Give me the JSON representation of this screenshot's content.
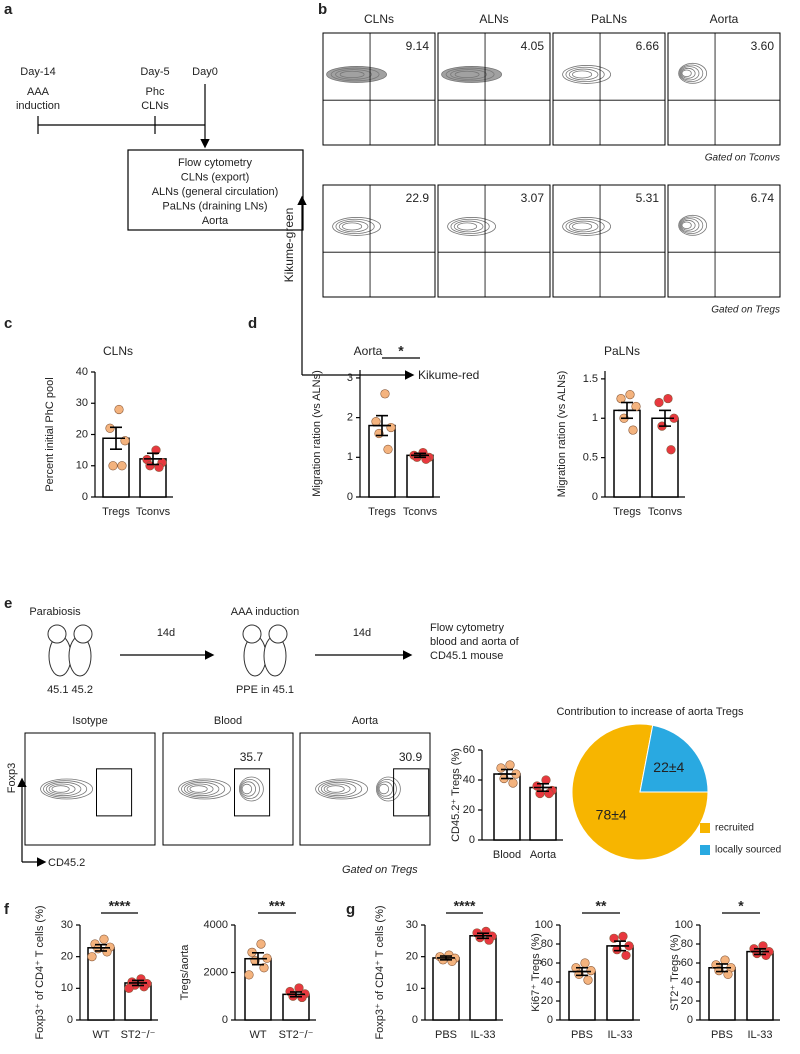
{
  "panel_labels": [
    "a",
    "b",
    "c",
    "d",
    "e",
    "f",
    "g"
  ],
  "panel_a": {
    "timepoints": [
      {
        "day": "Day-14",
        "event": [
          "AAA",
          "induction"
        ]
      },
      {
        "day": "Day-5",
        "event": [
          "Phc",
          "CLNs"
        ]
      },
      {
        "day": "Day0"
      }
    ],
    "readout": [
      "Flow cytometry",
      "CLNs (export)",
      "ALNs (general circulation)",
      "PaLNs (draining LNs)",
      "Aorta"
    ]
  },
  "panel_b": {
    "columns": [
      "CLNs",
      "ALNs",
      "PaLNs",
      "Aorta"
    ],
    "rows": [
      {
        "values": [
          "9.14",
          "4.05",
          "6.66",
          "3.60"
        ],
        "gate_label": "Gated on Tconvs"
      },
      {
        "values": [
          "22.9",
          "3.07",
          "5.31",
          "6.74"
        ],
        "gate_label": "Gated on Tregs"
      }
    ],
    "y_axis": "Kikume-green",
    "x_axis": "Kikume-red"
  },
  "panel_e_scheme": {
    "start": "Parabiosis",
    "mice": "45.1 45.2",
    "interval_1": "14d",
    "step": "AAA induction",
    "step_detail": "PPE in 45.1",
    "interval_2": "14d",
    "readout": [
      "Flow cytometry",
      "blood and aorta of",
      "CD45.1 mouse"
    ]
  },
  "panel_e_flow": {
    "plots": [
      {
        "title": "Isotype"
      },
      {
        "title": "Blood",
        "value": "35.7"
      },
      {
        "title": "Aorta",
        "value": "30.9"
      }
    ],
    "y_axis": "Foxp3",
    "x_axis": "CD45.2",
    "gate_label": "Gated on  Tregs"
  },
  "chart_data": [
    {
      "type": "bar",
      "title": "CLNs",
      "y_label": "Percent initial PhC pool",
      "categories": [
        "Tregs",
        "Tconvs"
      ],
      "values": [
        18.8,
        12.2
      ],
      "errors": [
        3.5,
        1.8
      ],
      "points": [
        [
          28,
          22,
          18,
          10,
          10
        ],
        [
          15,
          12,
          11,
          10,
          9.5
        ]
      ],
      "colors": [
        "#f4b37e",
        "#e8383f"
      ],
      "ylim": [
        0,
        40
      ],
      "yticks": [
        0,
        10,
        20,
        30,
        40
      ]
    },
    {
      "type": "bar",
      "title": "Aorta",
      "y_label": "Migration ration (vs ALNs)",
      "categories": [
        "Tregs",
        "Tconvs"
      ],
      "values": [
        1.8,
        1.05
      ],
      "errors": [
        0.25,
        0.05
      ],
      "points": [
        [
          2.6,
          1.9,
          1.75,
          1.6,
          1.2
        ],
        [
          1.12,
          1.05,
          1.0,
          1.0,
          0.95
        ]
      ],
      "colors": [
        "#f4b37e",
        "#e8383f"
      ],
      "ylim": [
        0,
        3.2
      ],
      "yticks": [
        0,
        1,
        2,
        3
      ],
      "significance": "*"
    },
    {
      "type": "bar",
      "title": "PaLNs",
      "y_label": "Migration ration (vs ALNs)",
      "categories": [
        "Tregs",
        "Tconvs"
      ],
      "values": [
        1.1,
        1.0
      ],
      "errors": [
        0.1,
        0.1
      ],
      "points": [
        [
          1.3,
          1.25,
          1.15,
          1.0,
          0.85
        ],
        [
          1.25,
          1.2,
          1.0,
          0.9,
          0.6
        ]
      ],
      "colors": [
        "#f4b37e",
        "#e8383f"
      ],
      "ylim": [
        0,
        1.6
      ],
      "yticks": [
        0,
        0.5,
        1,
        1.5
      ]
    },
    {
      "type": "bar",
      "y_label": "CD45.2⁺ Tregs (%)",
      "categories": [
        "Blood",
        "Aorta"
      ],
      "values": [
        44,
        35
      ],
      "errors": [
        3,
        2.5
      ],
      "points": [
        [
          50,
          48,
          44,
          41,
          38
        ],
        [
          40,
          36,
          33,
          31,
          31
        ]
      ],
      "colors": [
        "#f4b37e",
        "#e8383f"
      ],
      "ylim": [
        0,
        60
      ],
      "yticks": [
        0,
        20,
        40,
        60
      ]
    },
    {
      "type": "pie",
      "title": "Contribution to increase of aorta Tregs",
      "series": [
        {
          "name": "recruited",
          "color": "#f7b500"
        },
        {
          "name": "locally sourced",
          "color": "#29a9e1"
        }
      ],
      "values": [
        78,
        22
      ],
      "value_labels": [
        "78±4",
        "22±4"
      ]
    },
    {
      "type": "bar",
      "y_label": "Foxp3⁺ of CD4⁺ T cells (%)",
      "categories": [
        "WT",
        "ST2⁻/⁻"
      ],
      "values": [
        22.8,
        11.7
      ],
      "errors": [
        1,
        0.8
      ],
      "points": [
        [
          25.5,
          24,
          23,
          22.5,
          21.5,
          20
        ],
        [
          13,
          12,
          11.5,
          11,
          10.5,
          10
        ]
      ],
      "colors": [
        "#f4b37e",
        "#e8383f"
      ],
      "ylim": [
        0,
        30
      ],
      "yticks": [
        0,
        10,
        20,
        30
      ],
      "significance": "****"
    },
    {
      "type": "bar",
      "y_label": "Tregs/aorta",
      "categories": [
        "WT",
        "ST2⁻/⁻"
      ],
      "values": [
        2580,
        1080
      ],
      "errors": [
        250,
        100
      ],
      "points": [
        [
          3200,
          2850,
          2600,
          2500,
          2200,
          1900
        ],
        [
          1350,
          1200,
          1100,
          1000,
          950
        ]
      ],
      "colors": [
        "#f4b37e",
        "#e8383f"
      ],
      "ylim": [
        0,
        4000
      ],
      "yticks": [
        0,
        2000,
        4000
      ],
      "significance": "***"
    },
    {
      "type": "bar",
      "y_label": "Foxp3⁺ of CD4⁺ T cells (%)",
      "categories": [
        "PBS",
        "IL-33"
      ],
      "values": [
        19.6,
        26.6
      ],
      "errors": [
        0.6,
        0.8
      ],
      "points": [
        [
          20.5,
          20,
          19.5,
          19,
          18.5
        ],
        [
          28,
          27.5,
          26.5,
          26,
          25.2
        ]
      ],
      "colors": [
        "#f4b37e",
        "#e8383f"
      ],
      "ylim": [
        0,
        30
      ],
      "yticks": [
        0,
        10,
        20,
        30
      ],
      "significance": "****"
    },
    {
      "type": "bar",
      "y_label": "Ki67⁺ Tregs (%)",
      "categories": [
        "PBS",
        "IL-33"
      ],
      "values": [
        51,
        78
      ],
      "errors": [
        4,
        5
      ],
      "points": [
        [
          60,
          55,
          52,
          48,
          42
        ],
        [
          88,
          86,
          78,
          74,
          68
        ]
      ],
      "colors": [
        "#f4b37e",
        "#e8383f"
      ],
      "ylim": [
        0,
        100
      ],
      "yticks": [
        0,
        20,
        40,
        60,
        80,
        100
      ],
      "significance": "**"
    },
    {
      "type": "bar",
      "y_label": "ST2⁺ Tregs (%)",
      "categories": [
        "PBS",
        "IL-33"
      ],
      "values": [
        55,
        72
      ],
      "errors": [
        4,
        3
      ],
      "points": [
        [
          63,
          58,
          55,
          52,
          48
        ],
        [
          78,
          75,
          72,
          70,
          68
        ]
      ],
      "colors": [
        "#f4b37e",
        "#e8383f"
      ],
      "ylim": [
        0,
        100
      ],
      "yticks": [
        0,
        20,
        40,
        60,
        80,
        100
      ],
      "significance": "*"
    }
  ]
}
